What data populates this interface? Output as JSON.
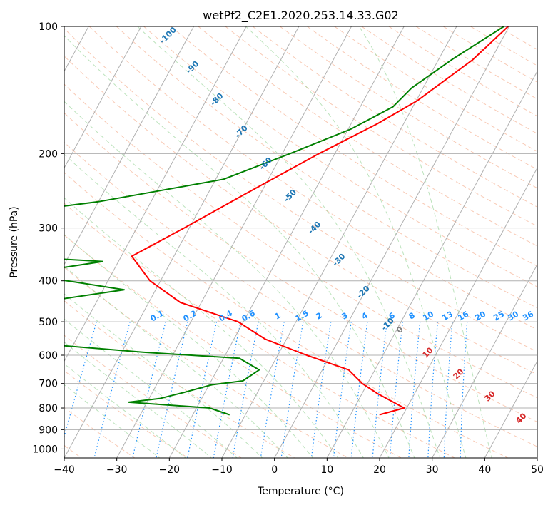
{
  "chart_data": {
    "type": "line",
    "title": "wetPf2_C2E1.2020.253.14.33.G02",
    "xlabel": "Temperature (°C)",
    "ylabel": "Pressure (hPa)",
    "xlim": [
      -40,
      50
    ],
    "ylim": [
      1050,
      100
    ],
    "y_scale": "log",
    "x_ticks": [
      -40,
      -30,
      -20,
      -10,
      0,
      10,
      20,
      30,
      40,
      50
    ],
    "x_tick_labels": [
      "−40",
      "−30",
      "−20",
      "−10",
      "0",
      "10",
      "20",
      "30",
      "40",
      "50"
    ],
    "y_ticks": [
      100,
      200,
      300,
      400,
      500,
      600,
      700,
      800,
      900,
      1000
    ],
    "y_tick_labels": [
      "100",
      "200",
      "300",
      "400",
      "500",
      "600",
      "700",
      "800",
      "900",
      "1000"
    ],
    "grid": true,
    "skew": "skew-T",
    "series": [
      {
        "role": "temperature",
        "color": "#ff0000",
        "points": [
          [
            -0.2,
            100
          ],
          [
            -3.5,
            120
          ],
          [
            -9.8,
            150
          ],
          [
            -15.0,
            170
          ],
          [
            -23.0,
            200
          ],
          [
            -33.0,
            250
          ],
          [
            -41.0,
            300
          ],
          [
            -48.0,
            350
          ],
          [
            -42.0,
            400
          ],
          [
            -34.0,
            450
          ],
          [
            -21.0,
            500
          ],
          [
            -14.0,
            550
          ],
          [
            -4.5,
            600
          ],
          [
            5.0,
            650
          ],
          [
            9.0,
            700
          ],
          [
            13.0,
            740
          ],
          [
            19.5,
            800
          ],
          [
            15.5,
            830
          ]
        ]
      },
      {
        "role": "dewpoint",
        "color": "#008000",
        "points": [
          [
            -1.0,
            100
          ],
          [
            -7.5,
            120
          ],
          [
            -12.2,
            140
          ],
          [
            -13.8,
            155
          ],
          [
            -19.5,
            175
          ],
          [
            -28.5,
            200
          ],
          [
            -38.5,
            230
          ],
          [
            -60.0,
            260
          ],
          [
            -88.0,
            290
          ],
          [
            -85.0,
            295
          ],
          [
            -89.0,
            300
          ],
          [
            -88.5,
            340
          ],
          [
            -53.0,
            360
          ],
          [
            -67.0,
            385
          ],
          [
            -46.0,
            420
          ],
          [
            -61.0,
            450
          ],
          [
            -70.0,
            500
          ],
          [
            -84.0,
            530
          ],
          [
            -63.5,
            555
          ],
          [
            -36.0,
            590
          ],
          [
            -17.0,
            610
          ],
          [
            -12.0,
            650
          ],
          [
            -14.0,
            690
          ],
          [
            -19.5,
            705
          ],
          [
            -24.0,
            735
          ],
          [
            -28.0,
            760
          ],
          [
            -33.5,
            775
          ],
          [
            -17.5,
            800
          ],
          [
            -13.0,
            830
          ]
        ]
      }
    ],
    "dry_adiabat_labels": [
      "-100",
      "-90",
      "-80",
      "-70",
      "-60",
      "-50",
      "-40",
      "-30",
      "-20",
      "-10"
    ],
    "mixing_ratio_labels": [
      "0.1",
      "0.2",
      "0.4",
      "0.6",
      "1",
      "1.5",
      "2",
      "3",
      "4",
      "6",
      "8",
      "10",
      "13",
      "16",
      "20",
      "25",
      "30",
      "36"
    ],
    "moist_adiabat_labels": [
      "0",
      "10",
      "20",
      "30",
      "40"
    ],
    "colors": {
      "dry_adiabat_label": "#1f77b4",
      "mixing_ratio": "#1e90ff",
      "moist_adiabat_label": "#d62728",
      "zero_label": "#808080"
    }
  }
}
